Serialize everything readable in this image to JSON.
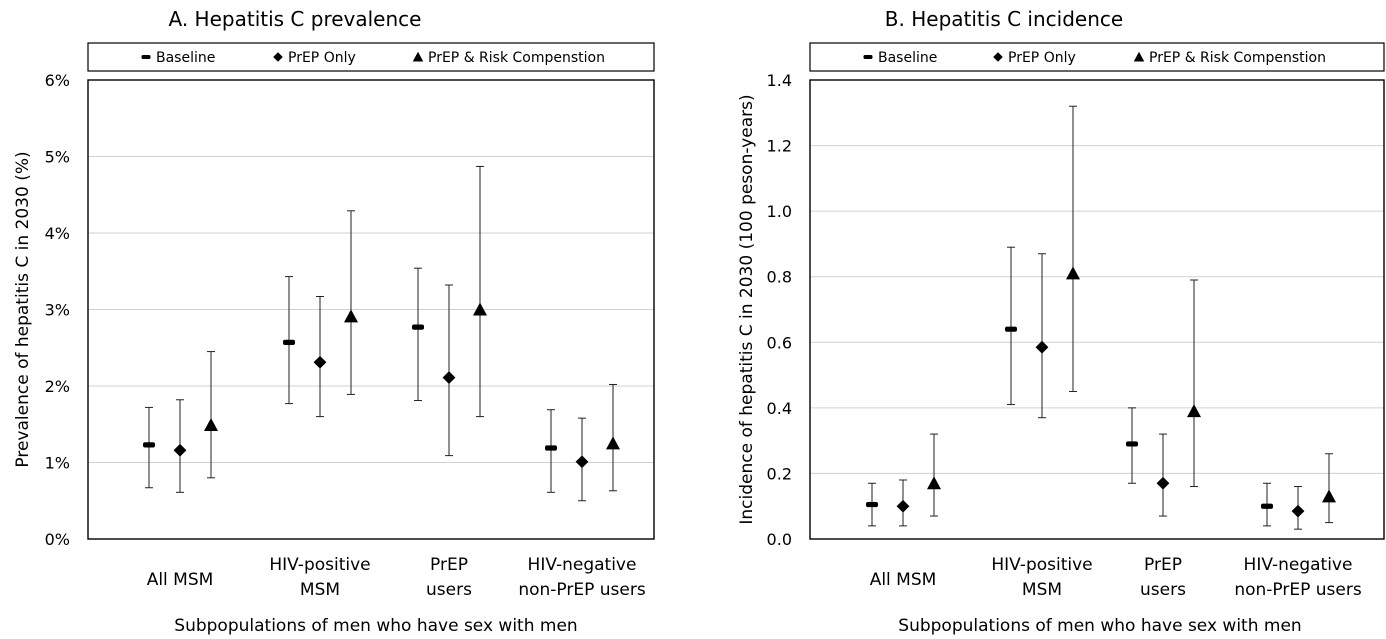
{
  "chart_data": [
    {
      "panel": "A",
      "type": "scatter",
      "title": "A. Hepatitis C prevalence",
      "legend": [
        "Baseline",
        "PrEP Only",
        "PrEP & Risk Compenstion"
      ],
      "legend_position": "top",
      "ylabel": "Prevalence of hepatitis C in 2030 (%)",
      "xlabel": "Subpopulations  of men who have sex with men",
      "y_tick_labels": [
        "0%",
        "1%",
        "2%",
        "3%",
        "4%",
        "5%",
        "6%"
      ],
      "ylim": [
        0,
        6
      ],
      "grid": true,
      "categories": [
        [
          "All MSM"
        ],
        [
          "HIV-positive",
          "MSM"
        ],
        [
          "PrEP",
          "users"
        ],
        [
          "HIV-negative",
          "non-PrEP  users"
        ]
      ],
      "series": [
        {
          "name": "Baseline",
          "marker": "dash",
          "values": [
            1.23,
            2.57,
            2.77,
            1.19
          ],
          "lower": [
            0.67,
            1.77,
            1.81,
            0.61
          ],
          "upper": [
            1.72,
            3.43,
            3.54,
            1.69
          ]
        },
        {
          "name": "PrEP Only",
          "marker": "diamond",
          "values": [
            1.16,
            2.31,
            2.11,
            1.01
          ],
          "lower": [
            0.61,
            1.6,
            1.09,
            0.5
          ],
          "upper": [
            1.82,
            3.17,
            3.32,
            1.58
          ]
        },
        {
          "name": "PrEP & Risk Compenstion",
          "marker": "triangle",
          "values": [
            1.49,
            2.91,
            3.0,
            1.25
          ],
          "lower": [
            0.8,
            1.89,
            1.6,
            0.63
          ],
          "upper": [
            2.45,
            4.29,
            4.87,
            2.02
          ]
        }
      ]
    },
    {
      "panel": "B",
      "type": "scatter",
      "title": "B. Hepatitis C incidence",
      "legend": [
        "Baseline",
        "PrEP Only",
        "PrEP & Risk Compenstion"
      ],
      "legend_position": "top",
      "ylabel": "Incidence of hepatitis C in 2030 (100 peson-years)",
      "xlabel": "Subpopulations  of men who have sex with men",
      "y_tick_labels": [
        "0.0",
        "0.2",
        "0.4",
        "0.6",
        "0.8",
        "1.0",
        "1.2",
        "1.4"
      ],
      "ylim": [
        0,
        1.4
      ],
      "grid": true,
      "categories": [
        [
          "All MSM"
        ],
        [
          "HIV-positive",
          "MSM"
        ],
        [
          "PrEP",
          "users"
        ],
        [
          "HIV-negative",
          "non-PrEP  users"
        ]
      ],
      "series": [
        {
          "name": "Baseline",
          "marker": "dash",
          "values": [
            0.105,
            0.64,
            0.29,
            0.1
          ],
          "lower": [
            0.04,
            0.41,
            0.17,
            0.04
          ],
          "upper": [
            0.17,
            0.89,
            0.4,
            0.17
          ]
        },
        {
          "name": "PrEP Only",
          "marker": "diamond",
          "values": [
            0.1,
            0.585,
            0.17,
            0.085
          ],
          "lower": [
            0.04,
            0.37,
            0.07,
            0.03
          ],
          "upper": [
            0.18,
            0.87,
            0.32,
            0.16
          ]
        },
        {
          "name": "PrEP & Risk Compenstion",
          "marker": "triangle",
          "values": [
            0.17,
            0.81,
            0.39,
            0.13
          ],
          "lower": [
            0.07,
            0.45,
            0.16,
            0.05
          ],
          "upper": [
            0.32,
            1.32,
            0.79,
            0.26
          ]
        }
      ]
    }
  ]
}
